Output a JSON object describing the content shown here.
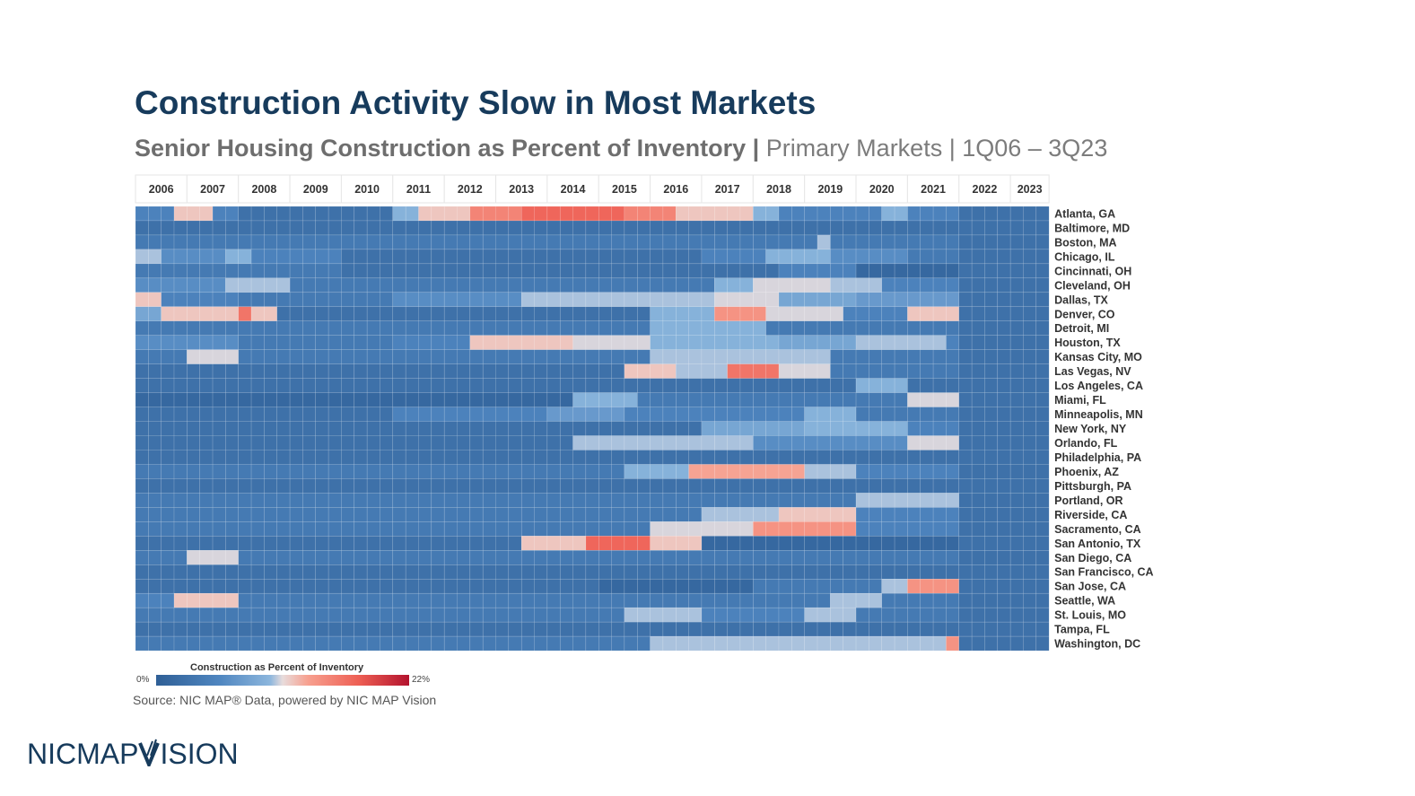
{
  "title": "Construction Activity Slow in Most Markets",
  "subtitle_bold": "Senior Housing Construction as Percent of Inventory",
  "subtitle_sep": "|",
  "subtitle_rest": "Primary Markets | 1Q06 – 3Q23",
  "source": "Source: NIC MAP® Data, powered by NIC MAP Vision",
  "logo_left": "NICMAP",
  "logo_right": "ISION",
  "legend": {
    "title": "Construction as Percent of Inventory",
    "min_label": "0%",
    "max_label": "22%"
  },
  "colors": {
    "title": "#173b5c",
    "low": "#2f5f96",
    "mid": "#e8dcdc",
    "high": "#b3132e"
  },
  "chart_data": {
    "type": "heatmap",
    "title": "Senior Housing Construction as Percent of Inventory",
    "value_unit": "%",
    "value_range": [
      0,
      22
    ],
    "years": [
      "2006",
      "2007",
      "2008",
      "2009",
      "2010",
      "2011",
      "2012",
      "2013",
      "2014",
      "2015",
      "2016",
      "2017",
      "2018",
      "2019",
      "2020",
      "2021",
      "2022",
      "2023"
    ],
    "quarters_per_year": 4,
    "last_quarter_count": 3,
    "markets": [
      "Atlanta, GA",
      "Baltimore, MD",
      "Boston, MA",
      "Chicago, IL",
      "Cincinnati, OH",
      "Cleveland, OH",
      "Dallas, TX",
      "Denver, CO",
      "Detroit, MI",
      "Houston, TX",
      "Kansas City, MO",
      "Las Vegas, NV",
      "Los Angeles, CA",
      "Miami, FL",
      "Minneapolis, MN",
      "New York, NY",
      "Orlando, FL",
      "Philadelphia, PA",
      "Phoenix, AZ",
      "Pittsburgh, PA",
      "Portland, OR",
      "Riverside, CA",
      "Sacramento, CA",
      "San Antonio, TX",
      "San Diego, CA",
      "San Francisco, CA",
      "San Jose, CA",
      "Seattle, WA",
      "St. Louis, MO",
      "Tampa, FL",
      "Washington, DC"
    ],
    "segments": [
      [
        [
          0,
          3,
          4
        ],
        [
          3,
          6,
          11
        ],
        [
          6,
          8,
          4
        ],
        [
          20,
          22,
          8
        ],
        [
          22,
          26,
          11
        ],
        [
          26,
          30,
          14
        ],
        [
          30,
          38,
          16
        ],
        [
          38,
          42,
          14
        ],
        [
          42,
          48,
          11
        ],
        [
          48,
          50,
          8
        ],
        [
          50,
          58,
          4
        ],
        [
          58,
          60,
          8
        ],
        [
          60,
          64,
          4
        ]
      ],
      [
        [
          0,
          64,
          2
        ]
      ],
      [
        [
          0,
          64,
          3
        ],
        [
          53,
          54,
          9
        ]
      ],
      [
        [
          0,
          2,
          9
        ],
        [
          2,
          7,
          5
        ],
        [
          7,
          9,
          8
        ],
        [
          9,
          16,
          4
        ],
        [
          16,
          44,
          2
        ],
        [
          44,
          49,
          4
        ],
        [
          49,
          54,
          8
        ],
        [
          54,
          60,
          5
        ],
        [
          60,
          64,
          3
        ]
      ],
      [
        [
          0,
          8,
          3
        ],
        [
          8,
          16,
          3
        ],
        [
          16,
          50,
          2
        ],
        [
          50,
          56,
          4
        ],
        [
          56,
          64,
          1
        ]
      ],
      [
        [
          0,
          7,
          5
        ],
        [
          7,
          12,
          9
        ],
        [
          12,
          25,
          3
        ],
        [
          25,
          45,
          3
        ],
        [
          45,
          48,
          8
        ],
        [
          48,
          54,
          10
        ],
        [
          54,
          58,
          9
        ],
        [
          58,
          64,
          4
        ]
      ],
      [
        [
          0,
          2,
          11
        ],
        [
          2,
          8,
          4
        ],
        [
          8,
          20,
          3
        ],
        [
          20,
          30,
          5
        ],
        [
          30,
          45,
          9
        ],
        [
          45,
          50,
          10
        ],
        [
          50,
          56,
          7
        ],
        [
          56,
          64,
          6
        ]
      ],
      [
        [
          0,
          2,
          7
        ],
        [
          2,
          8,
          11
        ],
        [
          8,
          9,
          15
        ],
        [
          9,
          11,
          11
        ],
        [
          11,
          40,
          2
        ],
        [
          40,
          45,
          8
        ],
        [
          45,
          49,
          13
        ],
        [
          49,
          55,
          10
        ],
        [
          55,
          64,
          4
        ],
        [
          60,
          64,
          11
        ]
      ],
      [
        [
          0,
          40,
          3
        ],
        [
          40,
          49,
          8
        ],
        [
          49,
          64,
          3
        ]
      ],
      [
        [
          0,
          8,
          5
        ],
        [
          8,
          20,
          3
        ],
        [
          20,
          26,
          4
        ],
        [
          26,
          34,
          11
        ],
        [
          34,
          40,
          10
        ],
        [
          40,
          50,
          8
        ],
        [
          50,
          56,
          7
        ],
        [
          56,
          63,
          9
        ],
        [
          63,
          64,
          4
        ]
      ],
      [
        [
          0,
          4,
          3
        ],
        [
          4,
          8,
          10
        ],
        [
          8,
          40,
          3
        ],
        [
          40,
          54,
          9
        ],
        [
          54,
          64,
          3
        ]
      ],
      [
        [
          0,
          5,
          2
        ],
        [
          5,
          38,
          2
        ],
        [
          38,
          42,
          11
        ],
        [
          42,
          46,
          9
        ],
        [
          46,
          50,
          15
        ],
        [
          50,
          54,
          10
        ],
        [
          54,
          64,
          3
        ]
      ],
      [
        [
          0,
          64,
          2
        ],
        [
          56,
          60,
          8
        ]
      ],
      [
        [
          0,
          34,
          1
        ],
        [
          34,
          39,
          8
        ],
        [
          39,
          60,
          3
        ],
        [
          60,
          64,
          10
        ]
      ],
      [
        [
          0,
          20,
          2
        ],
        [
          20,
          32,
          4
        ],
        [
          32,
          38,
          6
        ],
        [
          38,
          52,
          4
        ],
        [
          52,
          56,
          8
        ],
        [
          56,
          64,
          3
        ]
      ],
      [
        [
          0,
          44,
          2
        ],
        [
          44,
          52,
          7
        ],
        [
          52,
          60,
          8
        ],
        [
          60,
          64,
          4
        ]
      ],
      [
        [
          0,
          34,
          2
        ],
        [
          34,
          48,
          9
        ],
        [
          48,
          60,
          5
        ],
        [
          60,
          64,
          10
        ]
      ],
      [
        [
          0,
          64,
          2
        ]
      ],
      [
        [
          0,
          38,
          3
        ],
        [
          38,
          43,
          8
        ],
        [
          43,
          52,
          12
        ],
        [
          52,
          56,
          9
        ],
        [
          56,
          64,
          4
        ]
      ],
      [
        [
          0,
          64,
          2
        ]
      ],
      [
        [
          0,
          56,
          3
        ],
        [
          56,
          64,
          9
        ]
      ],
      [
        [
          0,
          44,
          3
        ],
        [
          44,
          50,
          9
        ],
        [
          50,
          56,
          11
        ],
        [
          56,
          64,
          4
        ]
      ],
      [
        [
          0,
          40,
          3
        ],
        [
          40,
          48,
          10
        ],
        [
          48,
          56,
          13
        ],
        [
          56,
          64,
          4
        ]
      ],
      [
        [
          0,
          30,
          2
        ],
        [
          30,
          35,
          11
        ],
        [
          35,
          40,
          16
        ],
        [
          40,
          44,
          11
        ],
        [
          44,
          64,
          1
        ]
      ],
      [
        [
          0,
          4,
          3
        ],
        [
          4,
          8,
          10
        ],
        [
          8,
          64,
          3
        ]
      ],
      [
        [
          0,
          64,
          2
        ]
      ],
      [
        [
          0,
          36,
          2
        ],
        [
          36,
          48,
          1
        ],
        [
          48,
          58,
          3
        ],
        [
          58,
          60,
          9
        ],
        [
          60,
          64,
          13
        ]
      ],
      [
        [
          0,
          3,
          4
        ],
        [
          3,
          8,
          11
        ],
        [
          8,
          54,
          3
        ],
        [
          54,
          58,
          9
        ],
        [
          58,
          64,
          3
        ]
      ],
      [
        [
          0,
          38,
          3
        ],
        [
          38,
          44,
          9
        ],
        [
          44,
          52,
          4
        ],
        [
          52,
          56,
          9
        ],
        [
          56,
          64,
          3
        ]
      ],
      [
        [
          0,
          64,
          2
        ]
      ],
      [
        [
          0,
          40,
          3
        ],
        [
          40,
          63,
          9
        ],
        [
          63,
          64,
          13
        ]
      ]
    ]
  }
}
